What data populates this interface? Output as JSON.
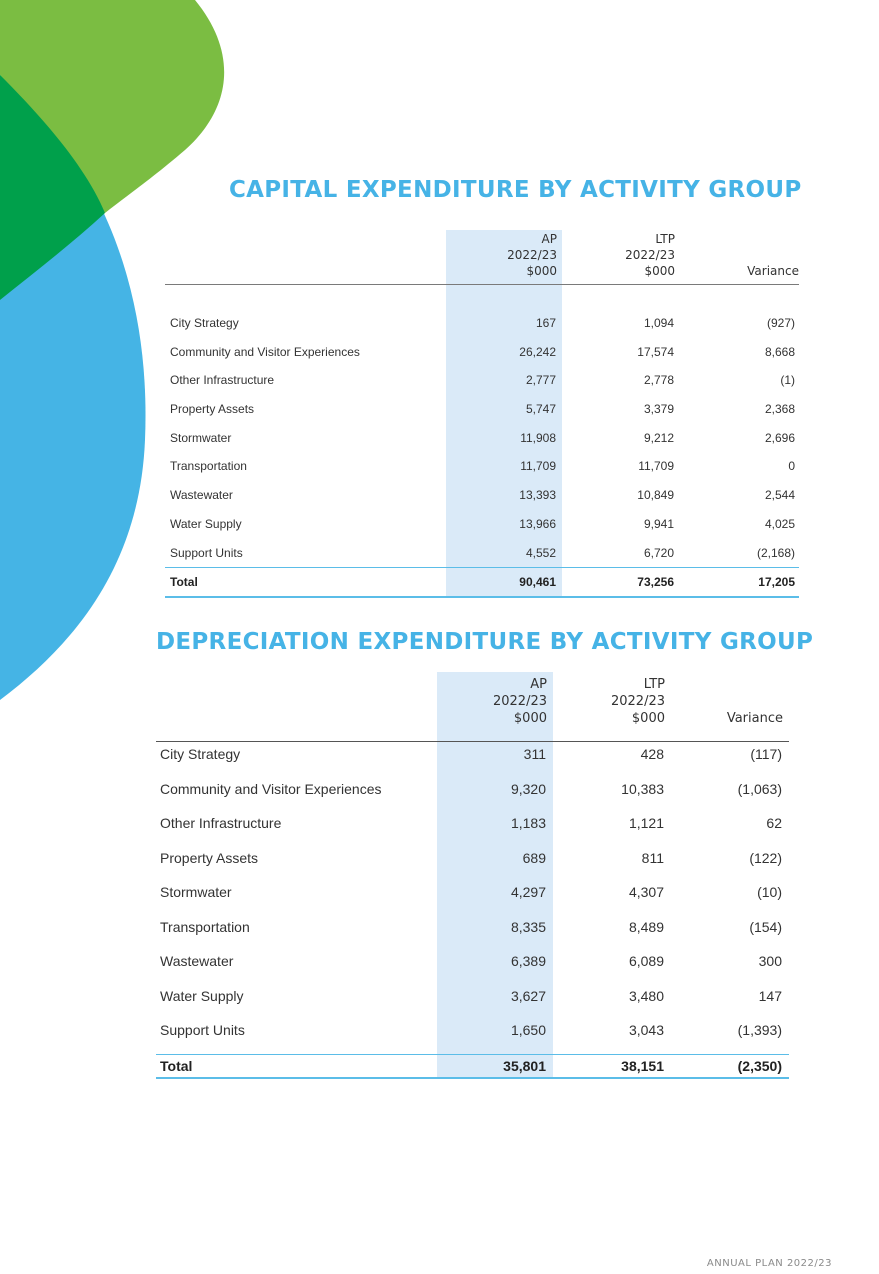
{
  "capital": {
    "title": "CAPITAL EXPENDITURE BY ACTIVITY GROUP",
    "headers": {
      "ap": [
        "AP",
        "2022/23",
        "$000"
      ],
      "ltp": [
        "LTP",
        "2022/23",
        "$000"
      ],
      "variance": "Variance"
    },
    "rows": [
      {
        "name": "City Strategy",
        "ap": "167",
        "ltp": "1,094",
        "variance": "(927)"
      },
      {
        "name": "Community and Visitor Experiences",
        "ap": "26,242",
        "ltp": "17,574",
        "variance": "8,668"
      },
      {
        "name": "Other Infrastructure",
        "ap": "2,777",
        "ltp": "2,778",
        "variance": "(1)"
      },
      {
        "name": "Property Assets",
        "ap": "5,747",
        "ltp": "3,379",
        "variance": "2,368"
      },
      {
        "name": "Stormwater",
        "ap": "11,908",
        "ltp": "9,212",
        "variance": "2,696"
      },
      {
        "name": "Transportation",
        "ap": "11,709",
        "ltp": "11,709",
        "variance": "0"
      },
      {
        "name": "Wastewater",
        "ap": "13,393",
        "ltp": "10,849",
        "variance": "2,544"
      },
      {
        "name": "Water Supply",
        "ap": "13,966",
        "ltp": "9,941",
        "variance": "4,025"
      },
      {
        "name": "Support Units",
        "ap": "4,552",
        "ltp": "6,720",
        "variance": "(2,168)"
      }
    ],
    "total": {
      "name": "Total",
      "ap": "90,461",
      "ltp": "73,256",
      "variance": "17,205"
    }
  },
  "depreciation": {
    "title": "DEPRECIATION EXPENDITURE BY ACTIVITY GROUP",
    "headers": {
      "ap": [
        "AP",
        "2022/23",
        "$000"
      ],
      "ltp": [
        "LTP",
        "2022/23",
        "$000"
      ],
      "variance": "Variance"
    },
    "rows": [
      {
        "name": "City Strategy",
        "ap": "311",
        "ltp": "428",
        "variance": "(117)"
      },
      {
        "name": "Community and Visitor Experiences",
        "ap": "9,320",
        "ltp": "10,383",
        "variance": "(1,063)"
      },
      {
        "name": "Other Infrastructure",
        "ap": "1,183",
        "ltp": "1,121",
        "variance": "62"
      },
      {
        "name": "Property Assets",
        "ap": "689",
        "ltp": "811",
        "variance": "(122)"
      },
      {
        "name": "Stormwater",
        "ap": "4,297",
        "ltp": "4,307",
        "variance": "(10)"
      },
      {
        "name": "Transportation",
        "ap": "8,335",
        "ltp": "8,489",
        "variance": "(154)"
      },
      {
        "name": "Wastewater",
        "ap": "6,389",
        "ltp": "6,089",
        "variance": "300"
      },
      {
        "name": "Water Supply",
        "ap": "3,627",
        "ltp": "3,480",
        "variance": "147"
      },
      {
        "name": "Support Units",
        "ap": "1,650",
        "ltp": "3,043",
        "variance": "(1,393)"
      }
    ],
    "total": {
      "name": "Total",
      "ap": "35,801",
      "ltp": "38,151",
      "variance": "(2,350)"
    }
  },
  "footer": "ANNUAL PLAN 2022/23",
  "colors": {
    "accent_blue": "#46b3e6",
    "light_green": "#7bbd42",
    "dark_green": "#00a04b",
    "sky_blue": "#45b4e5",
    "column_highlight": "#daeaf8"
  }
}
